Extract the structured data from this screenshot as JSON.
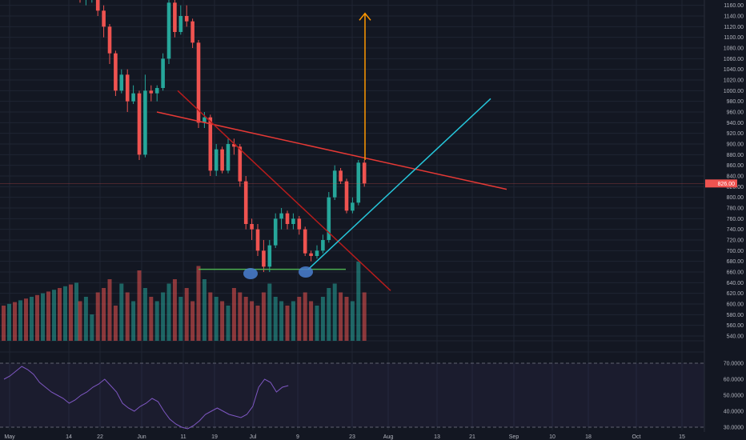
{
  "chart_data": [
    {
      "type": "candlestick",
      "title": "",
      "y_axis": {
        "range": [
          525,
          1170
        ],
        "ticks": [
          "1160.00",
          "1140.00",
          "1120.00",
          "1100.00",
          "1080.00",
          "1060.00",
          "1040.00",
          "1020.00",
          "1000.00",
          "980.00",
          "960.00",
          "940.00",
          "920.00",
          "900.00",
          "880.00",
          "860.00",
          "840.00",
          "820.00",
          "800.00",
          "780.00",
          "760.00",
          "740.00",
          "720.00",
          "700.00",
          "680.00",
          "660.00",
          "640.00",
          "620.00",
          "600.00",
          "580.00",
          "560.00",
          "540.00"
        ],
        "position": "right"
      },
      "x_axis": {
        "ticks": [
          "May",
          "14",
          "22",
          "Jun",
          "11",
          "19",
          "Jul",
          "9",
          "23",
          "Aug",
          "13",
          "21",
          "Sep",
          "10",
          "18",
          "Oct",
          "15"
        ]
      },
      "current_price_label": "826.00",
      "colors": {
        "up": "#26a69a",
        "down": "#ef5350",
        "background": "#131722"
      },
      "candles": [
        {
          "date": "May 1",
          "o": 1180,
          "h": 1185,
          "l": 1165,
          "c": 1170
        },
        {
          "date": "May 3",
          "o": 1170,
          "h": 1175,
          "l": 1160,
          "c": 1175
        },
        {
          "date": "May 5",
          "o": 1175,
          "h": 1185,
          "l": 1165,
          "c": 1178
        },
        {
          "date": "May 7",
          "o": 1178,
          "h": 1180,
          "l": 1140,
          "c": 1150
        },
        {
          "date": "May 9",
          "o": 1150,
          "h": 1160,
          "l": 1100,
          "c": 1120
        },
        {
          "date": "May 11",
          "o": 1120,
          "h": 1125,
          "l": 1050,
          "c": 1070
        },
        {
          "date": "May 13",
          "o": 1070,
          "h": 1075,
          "l": 990,
          "c": 1000
        },
        {
          "date": "May 15",
          "o": 1000,
          "h": 1040,
          "l": 995,
          "c": 1030
        },
        {
          "date": "May 17",
          "o": 1030,
          "h": 1040,
          "l": 960,
          "c": 980
        },
        {
          "date": "May 19",
          "o": 980,
          "h": 1010,
          "l": 975,
          "c": 995
        },
        {
          "date": "May 21",
          "o": 995,
          "h": 1000,
          "l": 870,
          "c": 880
        },
        {
          "date": "May 23",
          "o": 880,
          "h": 1030,
          "l": 875,
          "c": 1000
        },
        {
          "date": "May 25",
          "o": 1000,
          "h": 1010,
          "l": 980,
          "c": 995
        },
        {
          "date": "May 27",
          "o": 995,
          "h": 1010,
          "l": 980,
          "c": 1005
        },
        {
          "date": "May 29",
          "o": 1005,
          "h": 1070,
          "l": 1000,
          "c": 1060
        },
        {
          "date": "May 31",
          "o": 1060,
          "h": 1175,
          "l": 1050,
          "c": 1165
        },
        {
          "date": "Jun 2",
          "o": 1165,
          "h": 1170,
          "l": 1100,
          "c": 1110
        },
        {
          "date": "Jun 4",
          "o": 1110,
          "h": 1160,
          "l": 1105,
          "c": 1140
        },
        {
          "date": "Jun 6",
          "o": 1140,
          "h": 1160,
          "l": 1120,
          "c": 1130
        },
        {
          "date": "Jun 8",
          "o": 1130,
          "h": 1135,
          "l": 1080,
          "c": 1090
        },
        {
          "date": "Jun 10",
          "o": 1090,
          "h": 1095,
          "l": 930,
          "c": 940
        },
        {
          "date": "Jun 12",
          "o": 940,
          "h": 960,
          "l": 930,
          "c": 950
        },
        {
          "date": "Jun 14",
          "o": 950,
          "h": 955,
          "l": 840,
          "c": 850
        },
        {
          "date": "Jun 16",
          "o": 850,
          "h": 900,
          "l": 840,
          "c": 890
        },
        {
          "date": "Jun 18",
          "o": 890,
          "h": 895,
          "l": 845,
          "c": 850
        },
        {
          "date": "Jun 20",
          "o": 850,
          "h": 910,
          "l": 845,
          "c": 900
        },
        {
          "date": "Jun 22",
          "o": 900,
          "h": 910,
          "l": 880,
          "c": 895
        },
        {
          "date": "Jun 24",
          "o": 895,
          "h": 900,
          "l": 820,
          "c": 830
        },
        {
          "date": "Jun 26",
          "o": 830,
          "h": 840,
          "l": 740,
          "c": 750
        },
        {
          "date": "Jun 28",
          "o": 750,
          "h": 760,
          "l": 720,
          "c": 740
        },
        {
          "date": "Jun 30",
          "o": 740,
          "h": 750,
          "l": 690,
          "c": 700
        },
        {
          "date": "Jul 2",
          "o": 700,
          "h": 720,
          "l": 660,
          "c": 670
        },
        {
          "date": "Jul 4",
          "o": 670,
          "h": 720,
          "l": 660,
          "c": 710
        },
        {
          "date": "Jul 6",
          "o": 710,
          "h": 770,
          "l": 705,
          "c": 760
        },
        {
          "date": "Jul 8",
          "o": 760,
          "h": 780,
          "l": 740,
          "c": 770
        },
        {
          "date": "Jul 10",
          "o": 770,
          "h": 775,
          "l": 740,
          "c": 750
        },
        {
          "date": "Jul 12",
          "o": 750,
          "h": 770,
          "l": 740,
          "c": 760
        },
        {
          "date": "Jul 14",
          "o": 760,
          "h": 765,
          "l": 730,
          "c": 740
        },
        {
          "date": "Jul 16",
          "o": 740,
          "h": 745,
          "l": 690,
          "c": 695
        },
        {
          "date": "Jul 18",
          "o": 695,
          "h": 700,
          "l": 680,
          "c": 690
        },
        {
          "date": "Jul 20",
          "o": 690,
          "h": 710,
          "l": 685,
          "c": 700
        },
        {
          "date": "Jul 22",
          "o": 700,
          "h": 730,
          "l": 695,
          "c": 720
        },
        {
          "date": "Jul 24",
          "o": 720,
          "h": 810,
          "l": 715,
          "c": 800
        },
        {
          "date": "Jul 26",
          "o": 800,
          "h": 860,
          "l": 795,
          "c": 850
        },
        {
          "date": "Jul 28",
          "o": 850,
          "h": 855,
          "l": 825,
          "c": 830
        },
        {
          "date": "Jul 30",
          "o": 830,
          "h": 835,
          "l": 770,
          "c": 775
        },
        {
          "date": "Aug 1",
          "o": 775,
          "h": 800,
          "l": 770,
          "c": 790
        },
        {
          "date": "Aug 3",
          "o": 790,
          "h": 870,
          "l": 785,
          "c": 865
        },
        {
          "date": "Aug 5",
          "o": 865,
          "h": 870,
          "l": 820,
          "c": 826
        }
      ],
      "volume_colors": [
        "#ef5350",
        "#26a69a"
      ],
      "volume": [
        45,
        50,
        30,
        55,
        60,
        70,
        40,
        65,
        55,
        45,
        80,
        60,
        50,
        45,
        55,
        65,
        70,
        50,
        60,
        45,
        85,
        70,
        55,
        50,
        45,
        40,
        60,
        55,
        50,
        45,
        40,
        55,
        65,
        50,
        45,
        40,
        45,
        50,
        55,
        45,
        40,
        50,
        60,
        65,
        55,
        50,
        45,
        90,
        55
      ],
      "annotations": [
        {
          "label": "descending resistance",
          "color": "#e53935"
        },
        {
          "label": "dark red trendline",
          "color": "#b71c1c"
        },
        {
          "label": "support line",
          "color": "#4caf50"
        },
        {
          "label": "ascending trendline",
          "color": "#26c6da"
        },
        {
          "label": "target arrow",
          "color": "#ff9800"
        },
        {
          "label": "double bottom markers",
          "color": "#4a7fd0"
        }
      ]
    },
    {
      "type": "line",
      "title": "",
      "y_axis": {
        "range": [
          28,
          75
        ],
        "ticks": [
          "70.0000",
          "60.0000",
          "50.0000",
          "40.0000",
          "30.0000"
        ]
      },
      "series": [
        {
          "color": "#7e57c2",
          "values": [
            60,
            62,
            65,
            68,
            66,
            63,
            58,
            55,
            52,
            50,
            48,
            45,
            47,
            50,
            52,
            55,
            57,
            60,
            56,
            52,
            45,
            42,
            40,
            43,
            45,
            48,
            46,
            40,
            35,
            32,
            30,
            29,
            31,
            34,
            38,
            40,
            42,
            40,
            38,
            37,
            36,
            38,
            43,
            55,
            60,
            58,
            52,
            55,
            56
          ]
        }
      ]
    }
  ]
}
